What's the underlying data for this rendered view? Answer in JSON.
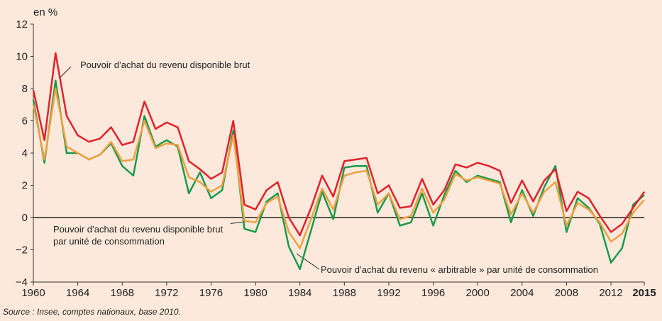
{
  "chart_data": {
    "type": "line",
    "y_label": "en %",
    "source": "Source : Insee, comptes nationaux, base 2010.",
    "x": [
      1960,
      1961,
      1962,
      1963,
      1964,
      1965,
      1966,
      1967,
      1968,
      1969,
      1970,
      1971,
      1972,
      1973,
      1974,
      1975,
      1976,
      1977,
      1978,
      1979,
      1980,
      1981,
      1982,
      1983,
      1984,
      1985,
      1986,
      1987,
      1988,
      1989,
      1990,
      1991,
      1992,
      1993,
      1994,
      1995,
      1996,
      1997,
      1998,
      1999,
      2000,
      2001,
      2002,
      2003,
      2004,
      2005,
      2006,
      2007,
      2008,
      2009,
      2010,
      2011,
      2012,
      2013,
      2014,
      2015
    ],
    "series": [
      {
        "name": "Pouvoir d’achat du revenu disponible brut",
        "color": "#e3202a",
        "values": [
          7.9,
          4.8,
          10.2,
          6.3,
          5.1,
          4.7,
          4.9,
          5.6,
          4.5,
          4.7,
          7.2,
          5.5,
          5.9,
          5.6,
          3.5,
          3.0,
          2.4,
          2.8,
          6.0,
          0.8,
          0.5,
          1.7,
          2.2,
          0.0,
          -1.1,
          0.6,
          2.6,
          1.3,
          3.5,
          3.6,
          3.7,
          1.5,
          2.0,
          0.6,
          0.7,
          2.4,
          0.8,
          1.7,
          3.3,
          3.1,
          3.4,
          3.2,
          2.9,
          0.9,
          2.3,
          1.0,
          2.3,
          3.0,
          0.4,
          1.6,
          1.2,
          0.1,
          -0.9,
          -0.4,
          0.6,
          1.6
        ]
      },
      {
        "name": "Pouvoir d’achat du revenu disponible brut par unité de consommation",
        "color": "#f0a040",
        "values": [
          7.0,
          3.6,
          8.0,
          4.4,
          4.0,
          3.6,
          3.9,
          4.7,
          3.5,
          3.6,
          6.0,
          4.3,
          4.6,
          4.5,
          2.5,
          2.2,
          1.6,
          2.0,
          5.1,
          -0.2,
          -0.3,
          0.9,
          1.3,
          -0.9,
          -1.9,
          -0.1,
          1.8,
          0.5,
          2.6,
          2.8,
          2.9,
          0.8,
          1.5,
          -0.1,
          0.1,
          1.8,
          0.3,
          1.1,
          2.7,
          2.3,
          2.5,
          2.3,
          2.1,
          0.2,
          1.5,
          0.3,
          1.6,
          2.2,
          -0.5,
          0.9,
          0.5,
          -0.3,
          -1.5,
          -1.0,
          0.3,
          1.1
        ]
      },
      {
        "name": "Pouvoir d’achat du revenu « arbitrable » par unité de consommation",
        "color": "#1a9a4a",
        "values": [
          7.3,
          3.4,
          8.5,
          4.0,
          4.0,
          3.6,
          3.9,
          4.6,
          3.2,
          2.6,
          6.3,
          4.4,
          4.8,
          4.4,
          1.5,
          2.8,
          1.2,
          1.7,
          5.4,
          -0.7,
          -0.9,
          1.0,
          1.5,
          -1.8,
          -3.2,
          -0.8,
          1.6,
          -0.1,
          3.1,
          3.2,
          3.2,
          0.3,
          1.5,
          -0.5,
          -0.3,
          1.5,
          -0.5,
          1.4,
          2.9,
          2.2,
          2.6,
          2.4,
          2.2,
          -0.3,
          1.7,
          0.1,
          1.9,
          3.2,
          -0.9,
          1.2,
          0.6,
          -0.4,
          -2.8,
          -1.9,
          0.8,
          1.4
        ]
      }
    ],
    "xlim": [
      1960,
      2015
    ],
    "xticks": [
      1960,
      1964,
      1968,
      1972,
      1976,
      1980,
      1984,
      1988,
      1992,
      1996,
      2000,
      2004,
      2008,
      2012,
      2015
    ],
    "ylim": [
      -4,
      12
    ],
    "yticks": [
      {
        "value": -4,
        "label": "−4"
      },
      {
        "value": -2,
        "label": "−2"
      },
      0,
      2,
      4,
      6,
      8,
      10,
      12
    ]
  }
}
